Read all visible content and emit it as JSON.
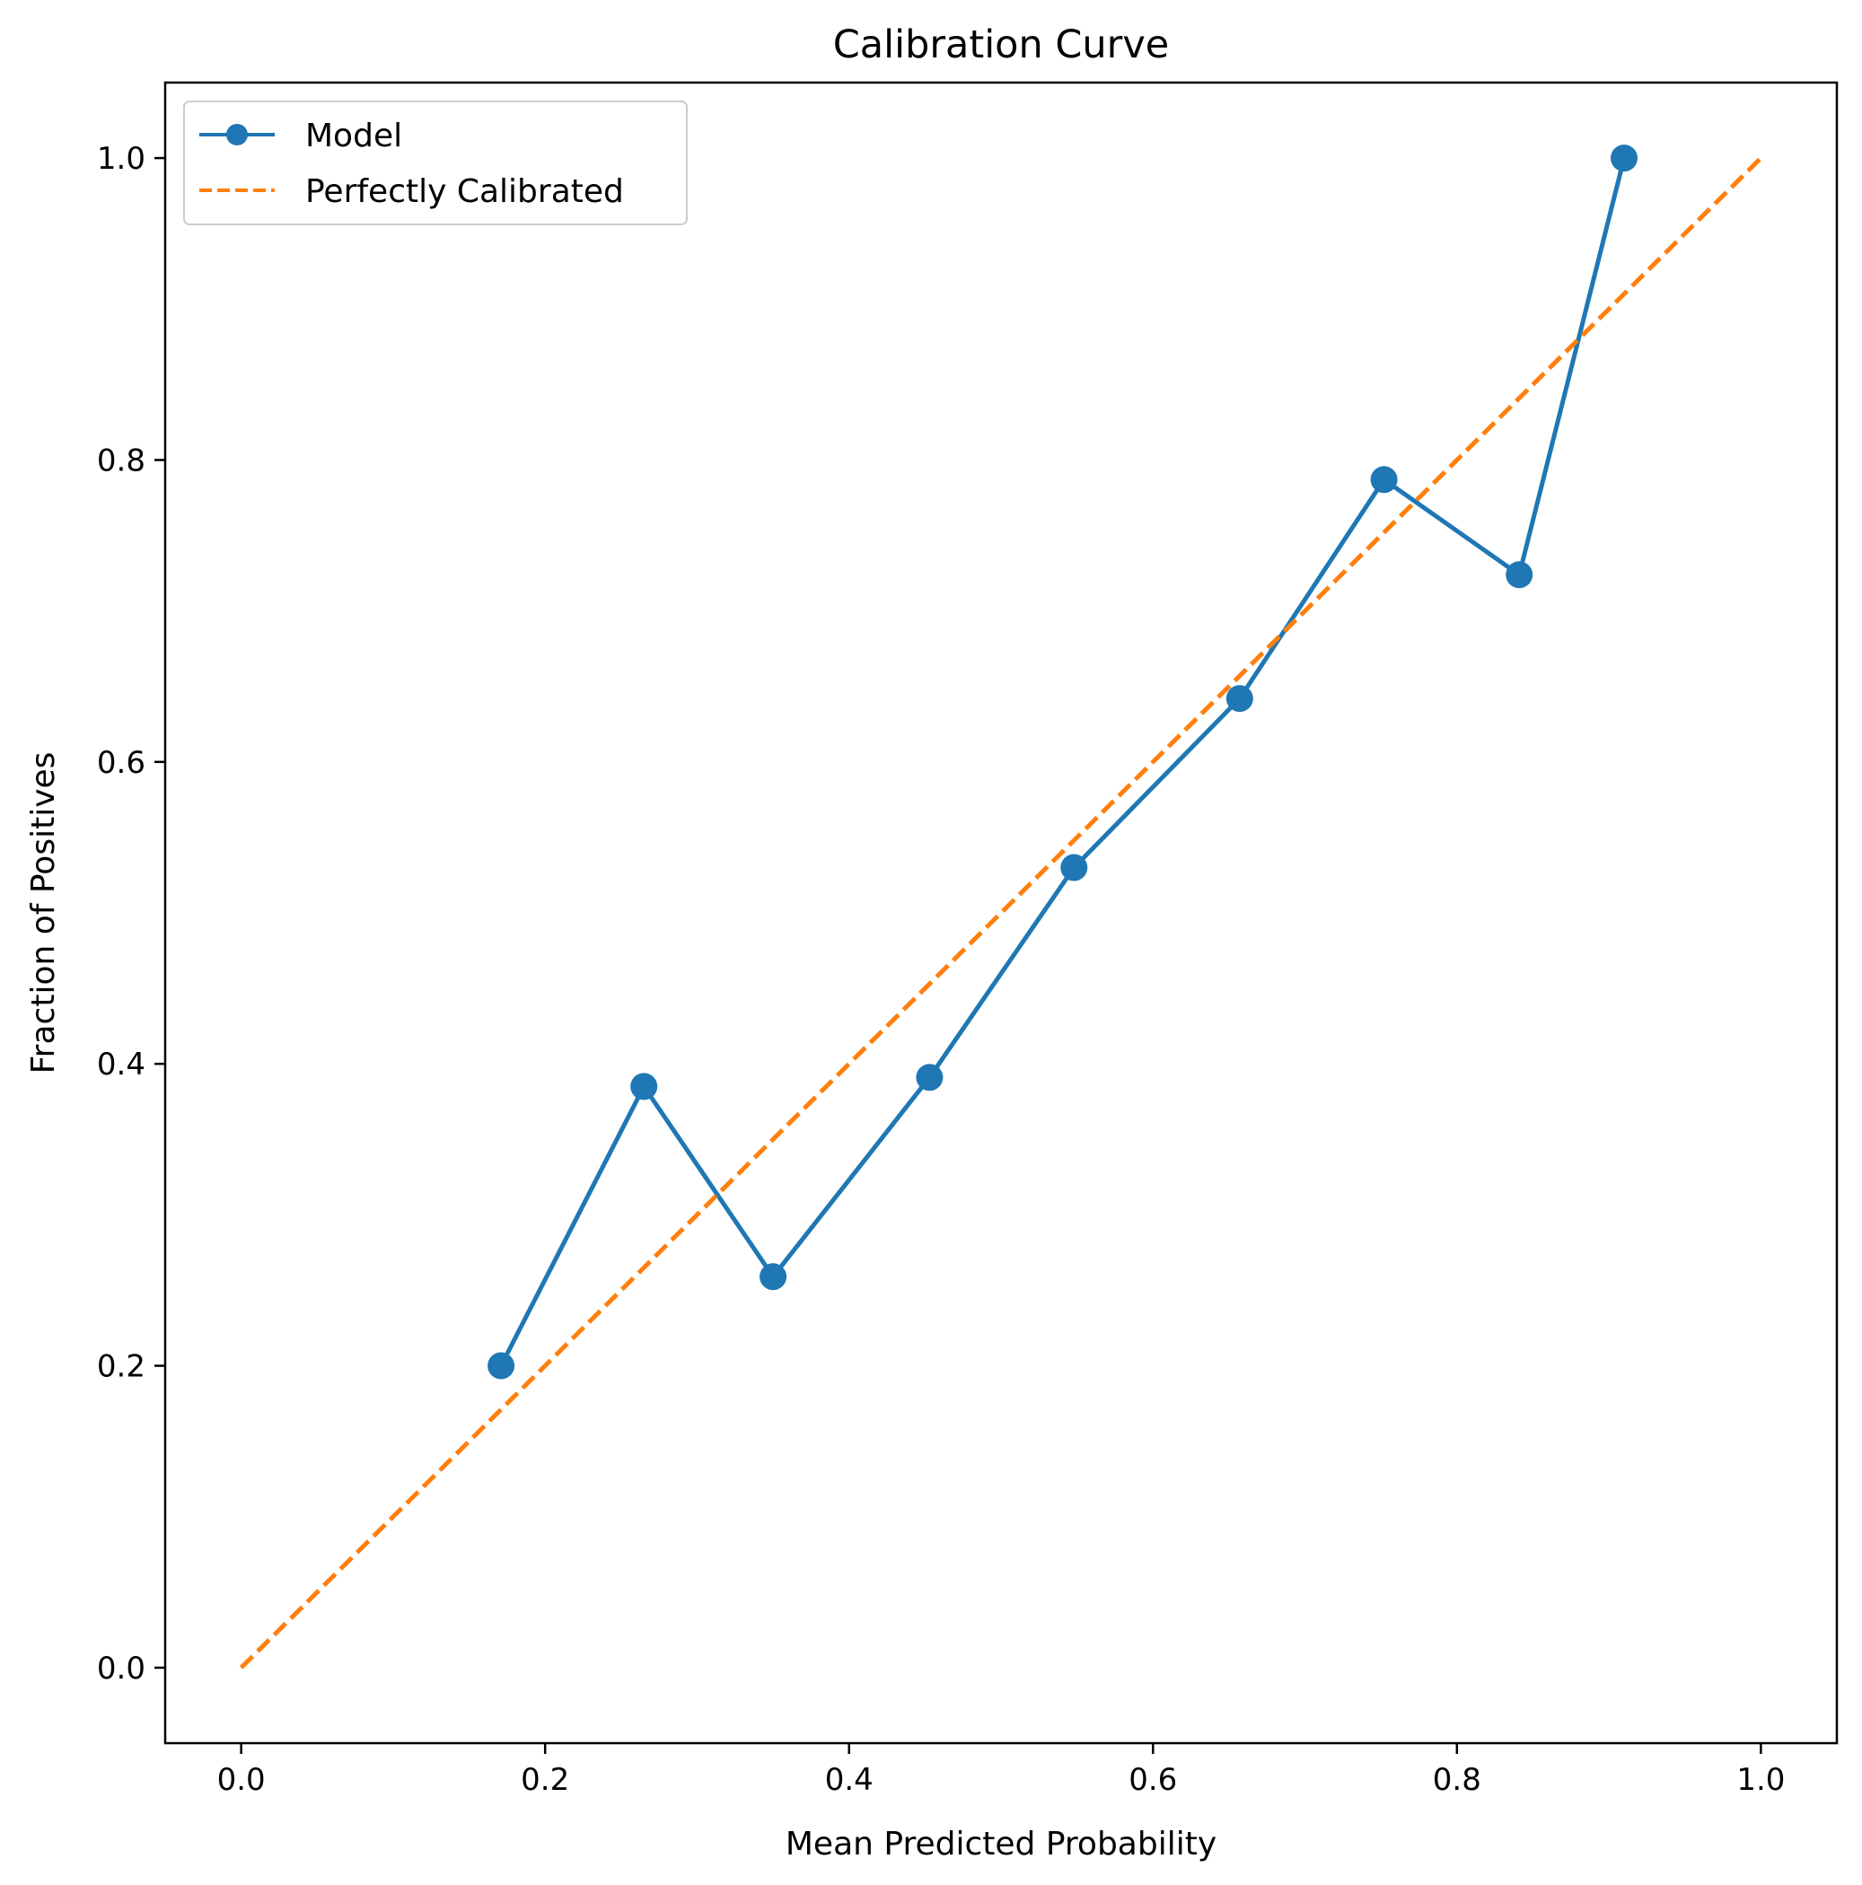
{
  "chart_data": {
    "type": "line",
    "title": "Calibration Curve",
    "xlabel": "Mean Predicted Probability",
    "ylabel": "Fraction of Positives",
    "xlim": [
      -0.05,
      1.05
    ],
    "ylim": [
      -0.05,
      1.05
    ],
    "xticks": [
      0.0,
      0.2,
      0.4,
      0.6,
      0.8,
      1.0
    ],
    "yticks": [
      0.0,
      0.2,
      0.4,
      0.6,
      0.8,
      1.0
    ],
    "xtick_labels": [
      "0.0",
      "0.2",
      "0.4",
      "0.6",
      "0.8",
      "1.0"
    ],
    "ytick_labels": [
      "0.0",
      "0.2",
      "0.4",
      "0.6",
      "0.8",
      "1.0"
    ],
    "grid": false,
    "legend_position": "upper-left",
    "series": [
      {
        "name": "Model",
        "color": "#1f77b4",
        "style": "solid",
        "marker": "circle",
        "x": [
          0.171,
          0.265,
          0.35,
          0.453,
          0.548,
          0.657,
          0.752,
          0.841,
          0.91
        ],
        "y": [
          0.2,
          0.385,
          0.259,
          0.391,
          0.53,
          0.642,
          0.787,
          0.724,
          1.0
        ]
      },
      {
        "name": "Perfectly Calibrated",
        "color": "#ff7f0e",
        "style": "dashed",
        "marker": "none",
        "x": [
          0.0,
          1.0
        ],
        "y": [
          0.0,
          1.0
        ]
      }
    ]
  }
}
